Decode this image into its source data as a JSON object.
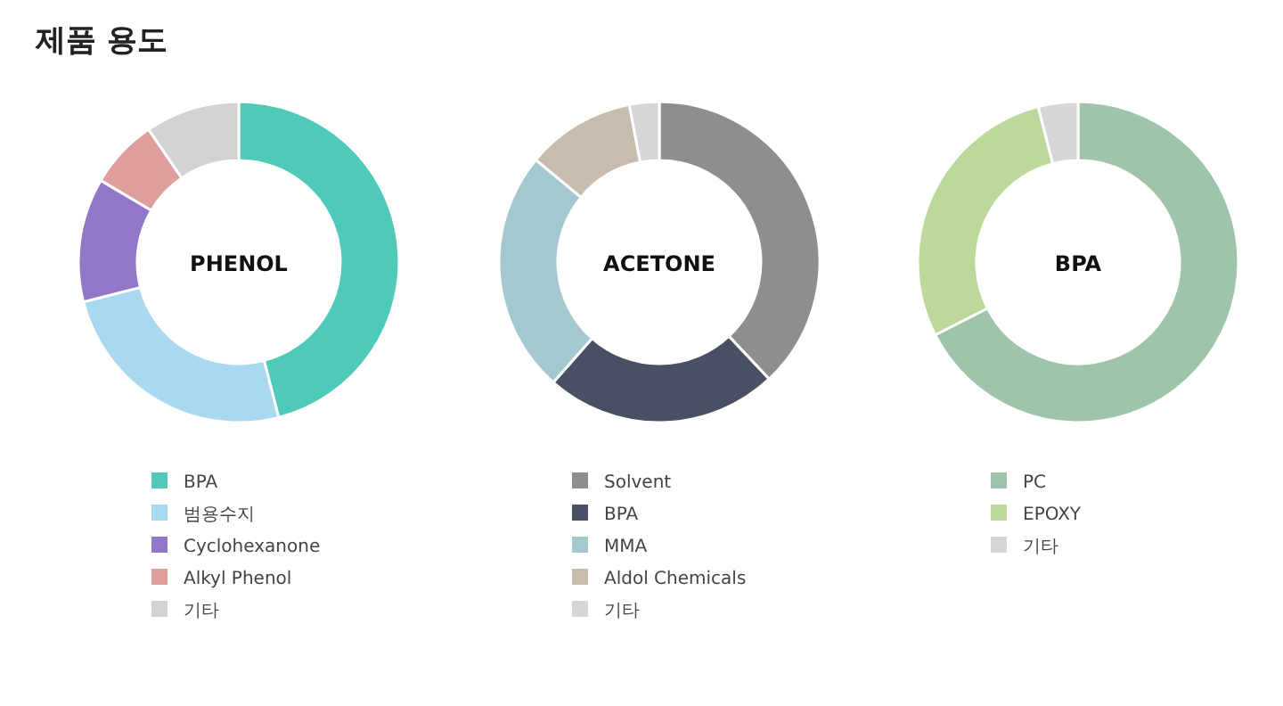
{
  "chart_data": [
    {
      "type": "donut",
      "title": "PHENOL",
      "annotations": [
        "제품 용도"
      ],
      "legend": "bottom",
      "categories": [
        "BPA",
        "범용수지",
        "Cyclohexanone",
        "Alkyl Phenol",
        "기타"
      ],
      "values": [
        46,
        25,
        12.5,
        7,
        9.5
      ],
      "colors": [
        "#4fc9b8",
        "#a9d8f0",
        "#9276c8",
        "#de9e9c",
        "#d2d2d2"
      ]
    },
    {
      "type": "donut",
      "title": "ACETONE",
      "legend": "bottom",
      "categories": [
        "Solvent",
        "BPA",
        "MMA",
        "Aldol Chemicals",
        "기타"
      ],
      "values": [
        38,
        23.5,
        24.5,
        11,
        3
      ],
      "colors": [
        "#8e8e8e",
        "#4a5064",
        "#a4c8cf",
        "#c8bcae",
        "#d6d6d6"
      ]
    },
    {
      "type": "donut",
      "title": "BPA",
      "legend": "bottom",
      "categories": [
        "PC",
        "EPOXY",
        "기타"
      ],
      "values": [
        67.5,
        28.5,
        4
      ],
      "colors": [
        "#9fc4a9",
        "#bcd99b",
        "#d6d6d6"
      ]
    }
  ]
}
